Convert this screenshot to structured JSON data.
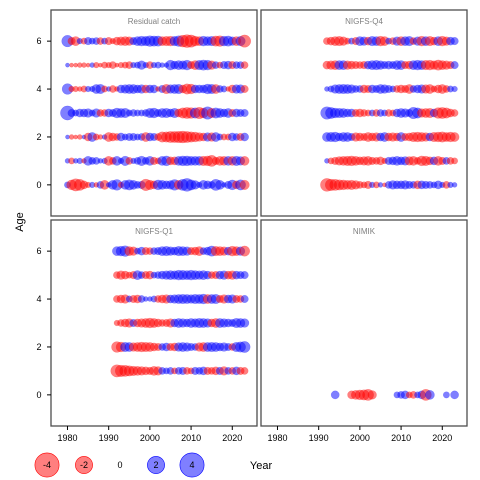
{
  "chart_data": {
    "type": "scatter",
    "ylabel": "Age",
    "xlabel": "Year",
    "xlim": [
      1976,
      2026
    ],
    "ylim": [
      -1.3,
      7.3
    ],
    "x_ticks": [
      "1980",
      "1990",
      "2000",
      "2010",
      "2020"
    ],
    "y_ticks": [
      "0",
      "2",
      "4",
      "6"
    ],
    "legend": {
      "placement": "bottom-left",
      "entries": [
        "-4",
        "-2",
        "0",
        "2",
        "4"
      ],
      "values": [
        -4,
        -2,
        0,
        2,
        4
      ]
    },
    "colors": {
      "negative": "#ff0000",
      "positive": "#0000ff",
      "bubble_opacity": 0.5,
      "axis": "#4d4d4d",
      "title": "#808080"
    },
    "panels": [
      {
        "title": "Residual catch",
        "years": [
          1980,
          2023
        ],
        "ages": [
          0,
          1,
          2,
          3,
          4,
          5,
          6
        ],
        "values": [
          [
            0.5,
            -1.2,
            -1.8,
            -1.5,
            -0.8,
            -0.4,
            0.4,
            -0.3,
            0.6,
            -1.0,
            0.3,
            1.0,
            1.4,
            -0.4,
            1.0,
            1.3,
            1.0,
            0.6,
            0.7,
            -1.6,
            -1.1,
            -0.8,
            1.2,
            1.0,
            0.8,
            0.9,
            1.4,
            -1.0,
            1.5,
            2.0,
            1.3,
            0.9,
            0.4,
            1.0,
            0.8,
            0.6,
            1.5,
            1.0,
            0.3,
            0.7,
            1.2,
            -0.8,
            1.3,
            -1.1
          ],
          [
            0.3,
            -0.5,
            0.3,
            0.4,
            -0.3,
            1.0,
            0.6,
            0.6,
            0.3,
            0.4,
            -1.0,
            -0.6,
            1.0,
            0.4,
            1.1,
            -0.6,
            0.4,
            0.6,
            1.1,
            0.6,
            1.0,
            -0.7,
            -0.5,
            1.0,
            1.2,
            -0.8,
            -0.8,
            1.0,
            1.2,
            1.2,
            1.0,
            1.0,
            1.0,
            -1.1,
            -1.2,
            -1.5,
            -0.7,
            -1.0,
            -1.0,
            1.0,
            -1.0,
            1.1,
            0.9,
            -1.0
          ],
          [
            0.2,
            -0.3,
            -0.2,
            -0.3,
            0.2,
            -0.8,
            1.0,
            -0.5,
            -0.3,
            0.3,
            -1.0,
            -0.8,
            -0.6,
            0.8,
            0.5,
            0.7,
            0.7,
            0.5,
            0.6,
            -1.0,
            0.8,
            0.7,
            -0.6,
            -1.3,
            -1.3,
            -1.5,
            -1.5,
            -1.6,
            -1.7,
            -1.5,
            -1.3,
            -1.2,
            -0.9,
            -0.8,
            0.9,
            -0.9,
            1.0,
            0.5,
            -0.5,
            -0.5,
            0.8,
            0.6,
            -0.7,
            0.8
          ],
          [
            2.4,
            0.7,
            0.5,
            0.8,
            0.8,
            0.9,
            0.5,
            0.9,
            -0.6,
            -0.6,
            0.8,
            0.7,
            1.2,
            1.0,
            1.1,
            0.5,
            0.6,
            0.5,
            0.5,
            0.6,
            1.1,
            1.2,
            0.7,
            1.0,
            1.1,
            0.8,
            1.1,
            -0.8,
            -1.3,
            -1.5,
            -1.4,
            1.3,
            -1.6,
            -1.2,
            1.9,
            -1.1,
            1.3,
            1.0,
            0.8,
            1.0,
            -0.7,
            0.8,
            0.7,
            0.7
          ],
          [
            1.4,
            -0.4,
            -0.4,
            -0.3,
            -0.5,
            0.4,
            0.4,
            1.0,
            1.1,
            -0.5,
            0.3,
            -0.6,
            -0.3,
            0.8,
            0.9,
            1.0,
            1.0,
            0.8,
            0.9,
            -0.8,
            0.8,
            0.8,
            -0.3,
            0.7,
            -1.1,
            0.9,
            1.0,
            1.1,
            -0.8,
            -1.3,
            -1.2,
            0.8,
            0.8,
            0.8,
            1.2,
            1.1,
            -1.0,
            0.6,
            0.5,
            -0.3,
            -0.8,
            0.9,
            0.9,
            -0.7
          ],
          [
            0.2,
            -0.2,
            -0.2,
            -0.3,
            -0.3,
            -0.2,
            0.3,
            -0.4,
            -0.2,
            -0.5,
            -0.4,
            -0.6,
            -0.2,
            -0.4,
            -0.5,
            -0.6,
            0.4,
            0.5,
            0.9,
            0.4,
            -0.6,
            0.4,
            0.5,
            0.3,
            0.3,
            1.2,
            0.8,
            1.0,
            0.9,
            1.2,
            -0.7,
            -1.0,
            1.1,
            1.3,
            1.2,
            -0.9,
            0.6,
            -0.5,
            0.7,
            0.8,
            -0.7,
            0.6,
            0.6,
            -0.6
          ],
          [
            1.6,
            -0.7,
            -1.0,
            0.4,
            -0.5,
            0.7,
            0.5,
            0.6,
            -0.6,
            0.5,
            -0.7,
            -0.4,
            -0.8,
            -0.9,
            -1.0,
            -0.9,
            0.7,
            1.0,
            1.2,
            1.1,
            1.4,
            1.3,
            1.3,
            -1.0,
            -1.1,
            -1.2,
            1.1,
            1.4,
            -1.7,
            -2.0,
            -1.8,
            -1.2,
            -1.0,
            1.2,
            1.0,
            1.1,
            -1.3,
            -1.4,
            1.2,
            1.3,
            0.9,
            -1.0,
            1.1,
            -1.8
          ]
        ]
      },
      {
        "title": "NIGFS-Q4",
        "years": [
          1992,
          2023
        ],
        "ages": [
          0,
          1,
          2,
          3,
          4,
          5,
          6
        ],
        "values": [
          [
            -2.0,
            -1.6,
            -1.5,
            -1.3,
            -1.2,
            -1.0,
            -1.1,
            -0.9,
            -0.6,
            -0.5,
            -0.7,
            0.4,
            -0.5,
            0.3,
            -0.2,
            0.6,
            0.9,
            0.8,
            0.8,
            0.9,
            0.7,
            0.6,
            -0.8,
            0.8,
            0.7,
            0.6,
            0.5,
            0.8,
            0.4,
            -0.6,
            0.4,
            0.3
          ],
          [
            0.3,
            -0.5,
            -0.7,
            -0.9,
            -1.0,
            -1.1,
            -1.2,
            -1.0,
            -0.8,
            -0.9,
            -1.0,
            -0.7,
            -0.6,
            -0.8,
            -0.4,
            0.7,
            0.8,
            1.0,
            0.8,
            0.9,
            -0.9,
            -1.0,
            -0.6,
            -1.2,
            -1.1,
            -0.8,
            0.8,
            -1.0,
            -0.7,
            0.6,
            -0.6,
            -0.5
          ],
          [
            1.0,
            1.1,
            1.2,
            0.8,
            1.0,
            1.0,
            0.7,
            -0.9,
            -0.8,
            -0.7,
            -1.0,
            -0.8,
            -0.9,
            0.8,
            1.0,
            -0.8,
            -0.9,
            -0.8,
            1.0,
            -0.7,
            -0.8,
            -1.1,
            -1.2,
            -1.0,
            -0.9,
            0.8,
            -1.1,
            -1.2,
            -1.3,
            -1.0,
            -1.2,
            -1.0
          ],
          [
            1.9,
            1.5,
            1.2,
            1.1,
            1.0,
            0.8,
            0.8,
            -0.7,
            -0.8,
            -0.6,
            -0.5,
            0.5,
            -0.6,
            0.6,
            0.5,
            -0.6,
            -0.5,
            0.8,
            1.0,
            0.9,
            0.7,
            1.6,
            1.3,
            -0.9,
            -1.0,
            -1.1,
            0.8,
            -1.4,
            -1.5,
            -1.3,
            -0.8,
            -0.6
          ],
          [
            0.3,
            0.5,
            0.9,
            1.0,
            1.1,
            1.0,
            0.9,
            0.6,
            0.6,
            -0.8,
            -0.7,
            0.8,
            0.7,
            1.0,
            0.9,
            0.7,
            0.5,
            -0.6,
            -0.8,
            -0.7,
            -1.0,
            0.6,
            0.8,
            0.9,
            -0.9,
            -1.0,
            -0.5,
            -0.8,
            -1.0,
            -0.6,
            0.5,
            0.4
          ],
          [
            -0.8,
            -0.9,
            -1.0,
            1.0,
            1.0,
            -0.9,
            -0.8,
            -0.7,
            -0.6,
            -0.7,
            0.8,
            1.0,
            1.1,
            0.9,
            0.7,
            0.8,
            0.7,
            1.0,
            1.0,
            -0.7,
            -0.8,
            1.0,
            1.2,
            1.0,
            -1.1,
            -1.2,
            -0.9,
            -1.3,
            -1.0,
            -0.9,
            -0.7,
            0.7
          ],
          [
            -0.6,
            -0.8,
            -1.0,
            -1.1,
            -0.9,
            -0.5,
            0.5,
            -0.7,
            1.0,
            0.9,
            -0.8,
            1.1,
            1.0,
            -1.2,
            -1.0,
            0.5,
            -0.6,
            0.9,
            -1.0,
            1.0,
            1.1,
            -0.6,
            0.9,
            -1.2,
            1.0,
            -1.1,
            -0.8,
            1.0,
            -1.2,
            -0.9,
            0.8,
            0.7
          ]
        ]
      },
      {
        "title": "NIGFS-Q1",
        "years": [
          1992,
          2023
        ],
        "ages": [
          1,
          2,
          3,
          4,
          5,
          6
        ],
        "values": [
          [
            -1.8,
            -1.6,
            -1.5,
            -1.3,
            -1.1,
            -1.0,
            -0.9,
            -0.8,
            -0.7,
            -1.0,
            -0.9,
            0.6,
            0.5,
            0.6,
            -0.5,
            0.6,
            0.7,
            -0.6,
            -0.5,
            0.7,
            0.6,
            0.8,
            -0.7,
            -0.6,
            -0.8,
            0.7,
            -0.9,
            0.6,
            -0.6,
            0.8,
            -0.7,
            -0.6
          ],
          [
            -1.4,
            -1.2,
            1.1,
            1.0,
            -0.9,
            -1.0,
            -1.2,
            -1.1,
            -1.0,
            -0.8,
            -0.7,
            0.6,
            0.8,
            -0.7,
            -0.8,
            0.9,
            1.0,
            0.9,
            0.7,
            0.6,
            -0.9,
            -1.0,
            1.0,
            1.1,
            1.0,
            0.8,
            0.9,
            0.7,
            -0.6,
            1.1,
            1.3,
            1.5
          ],
          [
            -0.4,
            -0.6,
            -0.8,
            -0.9,
            0.7,
            -0.8,
            -0.9,
            -1.0,
            -1.2,
            -1.0,
            -0.8,
            -0.6,
            -0.7,
            -0.9,
            0.8,
            1.0,
            0.9,
            0.8,
            1.0,
            0.9,
            1.1,
            1.0,
            0.9,
            -0.8,
            -1.0,
            1.0,
            0.9,
            0.8,
            0.7,
            1.1,
            1.0,
            0.9
          ],
          [
            -0.6,
            -0.8,
            -0.9,
            0.5,
            -0.7,
            -0.8,
            0.6,
            0.3,
            0.3,
            0.5,
            -0.6,
            -0.8,
            -0.9,
            0.8,
            0.9,
            1.0,
            1.1,
            1.0,
            0.9,
            1.1,
            1.0,
            1.2,
            -1.0,
            1.0,
            1.1,
            -0.7,
            -0.9,
            0.8,
            0.9,
            -0.7,
            -0.6,
            0.7
          ],
          [
            -0.6,
            -0.9,
            -0.8,
            -0.5,
            -0.7,
            1.0,
            0.6,
            -0.7,
            -0.8,
            0.5,
            0.6,
            0.8,
            0.9,
            1.0,
            0.9,
            1.2,
            1.1,
            1.0,
            1.2,
            1.0,
            0.9,
            1.0,
            0.8,
            -0.6,
            -0.7,
            0.8,
            0.9,
            -0.8,
            -0.9,
            0.8,
            0.7,
            0.7
          ],
          [
            1.0,
            1.2,
            1.4,
            -1.0,
            -0.9,
            0.5,
            0.8,
            -0.7,
            -0.6,
            0.6,
            0.7,
            1.0,
            1.1,
            0.9,
            0.8,
            1.1,
            1.0,
            0.9,
            -0.7,
            -0.8,
            -1.0,
            0.6,
            0.8,
            1.3,
            -1.1,
            -1.0,
            -0.9,
            0.8,
            -1.2,
            -1.0,
            0.9,
            -1.3
          ]
        ]
      },
      {
        "title": "NIMIK",
        "years": [
          1994,
          2023
        ],
        "ages": [
          0
        ],
        "values": [
          [
            0.8,
            0.0,
            0.0,
            0.0,
            -0.8,
            -1.0,
            -1.2,
            -1.3,
            -1.5,
            -0.9,
            0.0,
            0.0,
            0.0,
            0.0,
            0.0,
            0.5,
            0.6,
            0.8,
            -0.5,
            -0.6,
            0.5,
            0.8,
            -1.5,
            1.0,
            0.0,
            0.0,
            0.0,
            0.5,
            0.0,
            0.8
          ]
        ]
      }
    ]
  }
}
